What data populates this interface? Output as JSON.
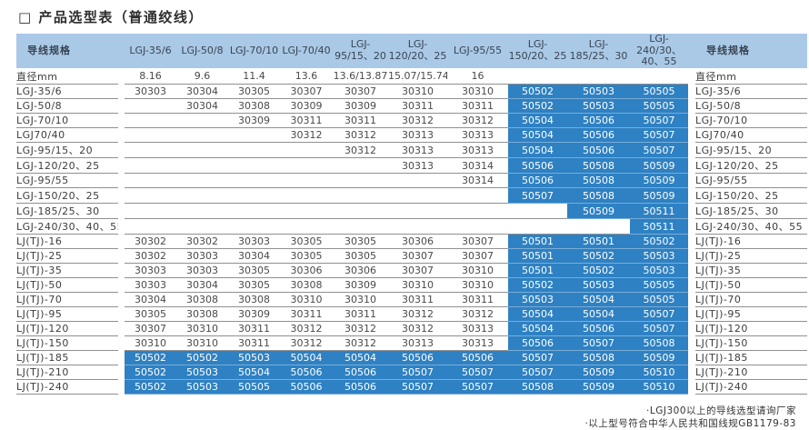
{
  "title": "□ 产品选型表（普通绞线）",
  "colors": {
    "header_bg": "#a9c9e7",
    "highlight_bg": "#2e81c3",
    "highlight_text": "#ffffff",
    "grid_line": "#909090",
    "text": "#3d3d3d"
  },
  "table": {
    "spec_header_left": "导线规格",
    "spec_header_right": "导线规格",
    "diameter_label": "直径mm",
    "columns": [
      "LGJ-35/6",
      "LGJ-50/8",
      "LGJ-70/10",
      "LGJ-70/40",
      "LGJ-95/15、20",
      "LGJ-120/20、25",
      "LGJ-95/55",
      "LGJ-150/20、25",
      "LGJ-185/25、30",
      "LGJ-240/30、40、55"
    ],
    "diameters": [
      "8.16",
      "9.6",
      "11.4",
      "13.6",
      "13.6/13.87",
      "15.07/15.74",
      "16",
      "",
      "",
      ""
    ],
    "rows": [
      {
        "label": "LGJ-35/6",
        "hl_from": 7,
        "cells": [
          "30303",
          "30304",
          "30305",
          "30307",
          "30307",
          "30310",
          "30310",
          "50502",
          "50503",
          "50505"
        ]
      },
      {
        "label": "LGJ-50/8",
        "hl_from": 7,
        "cells": [
          "",
          "30304",
          "30308",
          "30309",
          "30309",
          "30311",
          "30311",
          "50502",
          "50503",
          "50505"
        ]
      },
      {
        "label": "LGJ-70/10",
        "hl_from": 7,
        "cells": [
          "",
          "",
          "30309",
          "30311",
          "30311",
          "30312",
          "30312",
          "50504",
          "50506",
          "50507"
        ]
      },
      {
        "label": "LGJ70/40",
        "hl_from": 7,
        "cells": [
          "",
          "",
          "",
          "30312",
          "30312",
          "30313",
          "30313",
          "50504",
          "50506",
          "50507"
        ]
      },
      {
        "label": "LGJ-95/15、20",
        "hl_from": 7,
        "cells": [
          "",
          "",
          "",
          "",
          "30312",
          "30313",
          "30313",
          "50504",
          "50506",
          "50507"
        ]
      },
      {
        "label": "LGJ-120/20、25",
        "hl_from": 7,
        "cells": [
          "",
          "",
          "",
          "",
          "",
          "30313",
          "30314",
          "50506",
          "50508",
          "50509"
        ]
      },
      {
        "label": "LGJ-95/55",
        "hl_from": 7,
        "cells": [
          "",
          "",
          "",
          "",
          "",
          "",
          "30314",
          "50506",
          "50508",
          "50509"
        ]
      },
      {
        "label": "LGJ-150/20、25",
        "hl_from": 7,
        "cells": [
          "",
          "",
          "",
          "",
          "",
          "",
          "",
          "50507",
          "50508",
          "50509"
        ]
      },
      {
        "label": "LGJ-185/25、30",
        "hl_from": 8,
        "cells": [
          "",
          "",
          "",
          "",
          "",
          "",
          "",
          "",
          "50509",
          "50511"
        ]
      },
      {
        "label": "LGJ-240/30、40、55",
        "hl_from": 9,
        "cells": [
          "",
          "",
          "",
          "",
          "",
          "",
          "",
          "",
          "",
          "50511"
        ]
      },
      {
        "label": "LJ(TJ)-16",
        "hl_from": 7,
        "cells": [
          "30302",
          "30302",
          "30303",
          "30305",
          "30305",
          "30306",
          "30307",
          "50501",
          "50501",
          "50502"
        ]
      },
      {
        "label": "LJ(TJ)-25",
        "hl_from": 7,
        "cells": [
          "30302",
          "30303",
          "30304",
          "30305",
          "30305",
          "30307",
          "30307",
          "50501",
          "50502",
          "50503"
        ]
      },
      {
        "label": "LJ(TJ)-35",
        "hl_from": 7,
        "cells": [
          "30303",
          "30303",
          "30305",
          "30306",
          "30306",
          "30307",
          "30310",
          "50501",
          "50502",
          "50503"
        ]
      },
      {
        "label": "LJ(TJ)-50",
        "hl_from": 7,
        "cells": [
          "30303",
          "30304",
          "30305",
          "30308",
          "30309",
          "30310",
          "30310",
          "50502",
          "50503",
          "50505"
        ]
      },
      {
        "label": "LJ(TJ)-70",
        "hl_from": 7,
        "cells": [
          "30304",
          "30308",
          "30308",
          "30310",
          "30310",
          "30311",
          "30311",
          "50503",
          "50504",
          "50505"
        ]
      },
      {
        "label": "LJ(TJ)-95",
        "hl_from": 7,
        "cells": [
          "30305",
          "30308",
          "30309",
          "30311",
          "30311",
          "30312",
          "30312",
          "50504",
          "50504",
          "50507"
        ]
      },
      {
        "label": "LJ(TJ)-120",
        "hl_from": 7,
        "cells": [
          "30307",
          "30310",
          "30311",
          "30312",
          "30312",
          "30312",
          "30313",
          "50504",
          "50506",
          "50507"
        ]
      },
      {
        "label": "LJ(TJ)-150",
        "hl_from": 7,
        "cells": [
          "30310",
          "30310",
          "30311",
          "30312",
          "30312",
          "30313",
          "30313",
          "50506",
          "50507",
          "50508"
        ]
      },
      {
        "label": "LJ(TJ)-185",
        "hl_from": 0,
        "cells": [
          "50502",
          "50502",
          "50503",
          "50504",
          "50504",
          "50506",
          "50506",
          "50507",
          "50508",
          "50509"
        ]
      },
      {
        "label": "LJ(TJ)-210",
        "hl_from": 0,
        "cells": [
          "50502",
          "50503",
          "50504",
          "50506",
          "50506",
          "50507",
          "50507",
          "50507",
          "50509",
          "50510"
        ]
      },
      {
        "label": "LJ(TJ)-240",
        "hl_from": 0,
        "cells": [
          "50502",
          "50503",
          "50505",
          "50506",
          "50506",
          "50507",
          "50507",
          "50508",
          "50509",
          "50510"
        ]
      }
    ]
  },
  "notes": [
    "·LGJ300以上的导线选型请询厂家",
    "·以上型号符合中华人民共和国线规GB1179-83"
  ]
}
